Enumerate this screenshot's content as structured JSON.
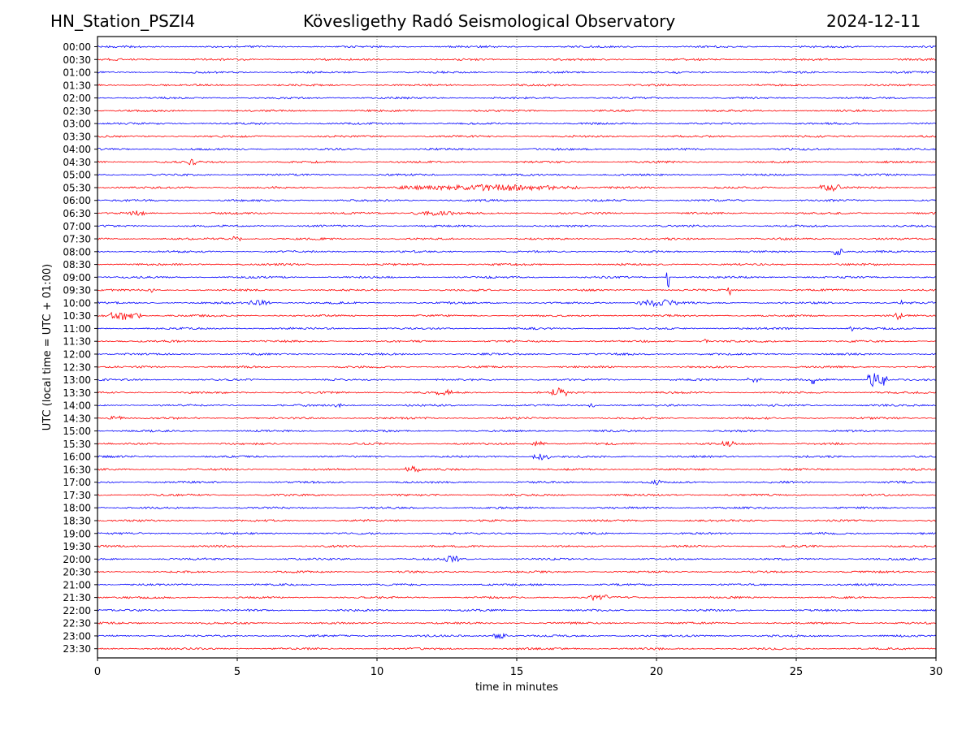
{
  "header": {
    "station": "HN_Station_PSZI4",
    "observatory": "Kövesligethy Radó Seismological Observatory",
    "date": "2024-12-11"
  },
  "chart_data": {
    "type": "line",
    "title": "Kövesligethy Radó Seismological Observatory",
    "xlabel": "time in minutes",
    "ylabel": "UTC (local time = UTC + 01:00)",
    "xlim": [
      0,
      30
    ],
    "x_ticks": [
      0,
      5,
      10,
      15,
      20,
      25,
      30
    ],
    "grid": "vertical dotted at x ticks",
    "colors": [
      "#0000ff",
      "#ff0000"
    ],
    "rows": [
      "00:00",
      "00:30",
      "01:00",
      "01:30",
      "02:00",
      "02:30",
      "03:00",
      "03:30",
      "04:00",
      "04:30",
      "05:00",
      "05:30",
      "06:00",
      "06:30",
      "07:00",
      "07:30",
      "08:00",
      "08:30",
      "09:00",
      "09:30",
      "10:00",
      "10:30",
      "11:00",
      "11:30",
      "12:00",
      "12:30",
      "13:00",
      "13:30",
      "14:00",
      "14:30",
      "15:00",
      "15:30",
      "16:00",
      "16:30",
      "17:00",
      "17:30",
      "18:00",
      "18:30",
      "19:00",
      "19:30",
      "20:00",
      "20:30",
      "21:00",
      "21:30",
      "22:00",
      "22:30",
      "23:00",
      "23:30"
    ],
    "events": [
      {
        "row": "04:30",
        "minute": 3.4,
        "amplitude": 3,
        "duration": 0.3
      },
      {
        "row": "05:30",
        "minute": 14.0,
        "amplitude": 3,
        "duration": 6.5
      },
      {
        "row": "05:30",
        "minute": 26.2,
        "amplitude": 4,
        "duration": 0.8
      },
      {
        "row": "06:30",
        "minute": 1.4,
        "amplitude": 2.5,
        "duration": 0.6
      },
      {
        "row": "06:30",
        "minute": 12.0,
        "amplitude": 2,
        "duration": 1.6
      },
      {
        "row": "07:30",
        "minute": 5.0,
        "amplitude": 4,
        "duration": 0.3
      },
      {
        "row": "08:00",
        "minute": 26.5,
        "amplitude": 6,
        "duration": 0.3
      },
      {
        "row": "09:00",
        "minute": 20.4,
        "amplitude": 14,
        "duration": 0.1
      },
      {
        "row": "09:30",
        "minute": 22.6,
        "amplitude": 14,
        "duration": 0.1
      },
      {
        "row": "09:30",
        "minute": 2.0,
        "amplitude": 4,
        "duration": 0.2
      },
      {
        "row": "10:00",
        "minute": 20.0,
        "amplitude": 4,
        "duration": 1.5
      },
      {
        "row": "10:00",
        "minute": 5.8,
        "amplitude": 3,
        "duration": 0.8
      },
      {
        "row": "10:00",
        "minute": 28.8,
        "amplitude": 5,
        "duration": 0.2
      },
      {
        "row": "10:30",
        "minute": 1.0,
        "amplitude": 5,
        "duration": 1.2
      },
      {
        "row": "10:30",
        "minute": 28.7,
        "amplitude": 7,
        "duration": 0.3
      },
      {
        "row": "11:00",
        "minute": 27.0,
        "amplitude": 5,
        "duration": 0.2
      },
      {
        "row": "11:30",
        "minute": 21.7,
        "amplitude": 4,
        "duration": 0.3
      },
      {
        "row": "13:00",
        "minute": 27.9,
        "amplitude": 10,
        "duration": 0.7
      },
      {
        "row": "13:00",
        "minute": 23.5,
        "amplitude": 4,
        "duration": 0.5
      },
      {
        "row": "13:00",
        "minute": 25.6,
        "amplitude": 6,
        "duration": 0.1
      },
      {
        "row": "13:30",
        "minute": 12.4,
        "amplitude": 3,
        "duration": 0.6
      },
      {
        "row": "13:30",
        "minute": 16.5,
        "amplitude": 5,
        "duration": 0.6
      },
      {
        "row": "14:00",
        "minute": 8.6,
        "amplitude": 2.5,
        "duration": 0.2
      },
      {
        "row": "14:00",
        "minute": 17.7,
        "amplitude": 3,
        "duration": 0.2
      },
      {
        "row": "14:30",
        "minute": 0.7,
        "amplitude": 2.5,
        "duration": 0.6
      },
      {
        "row": "15:30",
        "minute": 15.8,
        "amplitude": 3,
        "duration": 0.6
      },
      {
        "row": "15:30",
        "minute": 22.6,
        "amplitude": 3,
        "duration": 0.5
      },
      {
        "row": "16:00",
        "minute": 15.9,
        "amplitude": 3.5,
        "duration": 0.7
      },
      {
        "row": "16:30",
        "minute": 11.3,
        "amplitude": 3.5,
        "duration": 0.6
      },
      {
        "row": "17:00",
        "minute": 20.0,
        "amplitude": 3,
        "duration": 0.4
      },
      {
        "row": "20:00",
        "minute": 12.7,
        "amplitude": 3.5,
        "duration": 0.5
      },
      {
        "row": "21:30",
        "minute": 17.9,
        "amplitude": 3,
        "duration": 0.7
      },
      {
        "row": "23:00",
        "minute": 14.4,
        "amplitude": 3,
        "duration": 0.5
      }
    ]
  }
}
